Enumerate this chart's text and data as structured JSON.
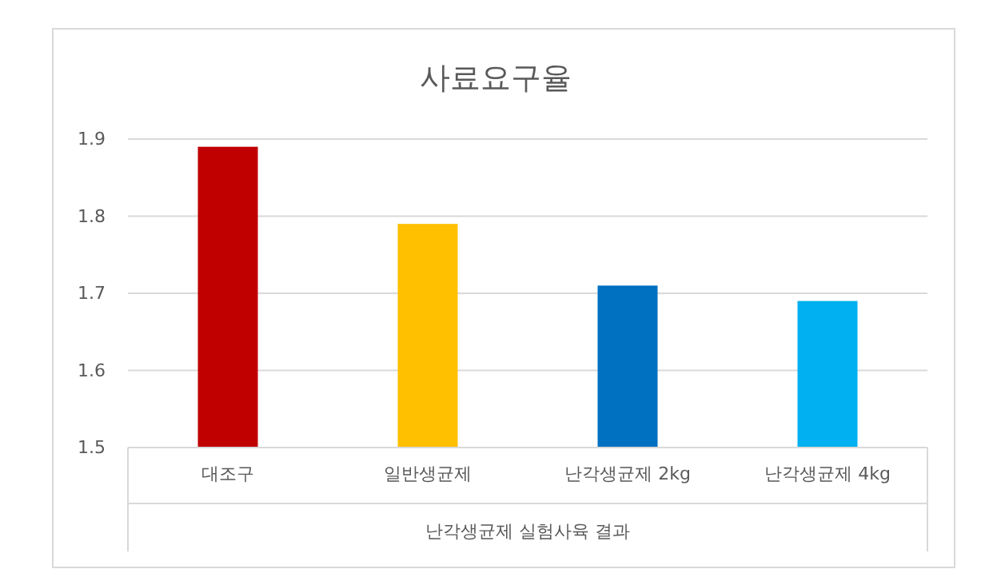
{
  "chart_data": {
    "type": "bar",
    "title": "사료요구율",
    "xlabel": "난각생균제 실험사육 결과",
    "categories": [
      "대조구",
      "일반생균제",
      "난각생균제 2kg",
      "난각생균제 4kg"
    ],
    "values": [
      1.89,
      1.79,
      1.71,
      1.69
    ],
    "colors": [
      "#c00000",
      "#ffc000",
      "#0070c0",
      "#00b0f0"
    ],
    "ylim": [
      1.5,
      1.9
    ],
    "yticks": [
      1.5,
      1.6,
      1.7,
      1.8,
      1.9
    ],
    "grid": "y"
  }
}
